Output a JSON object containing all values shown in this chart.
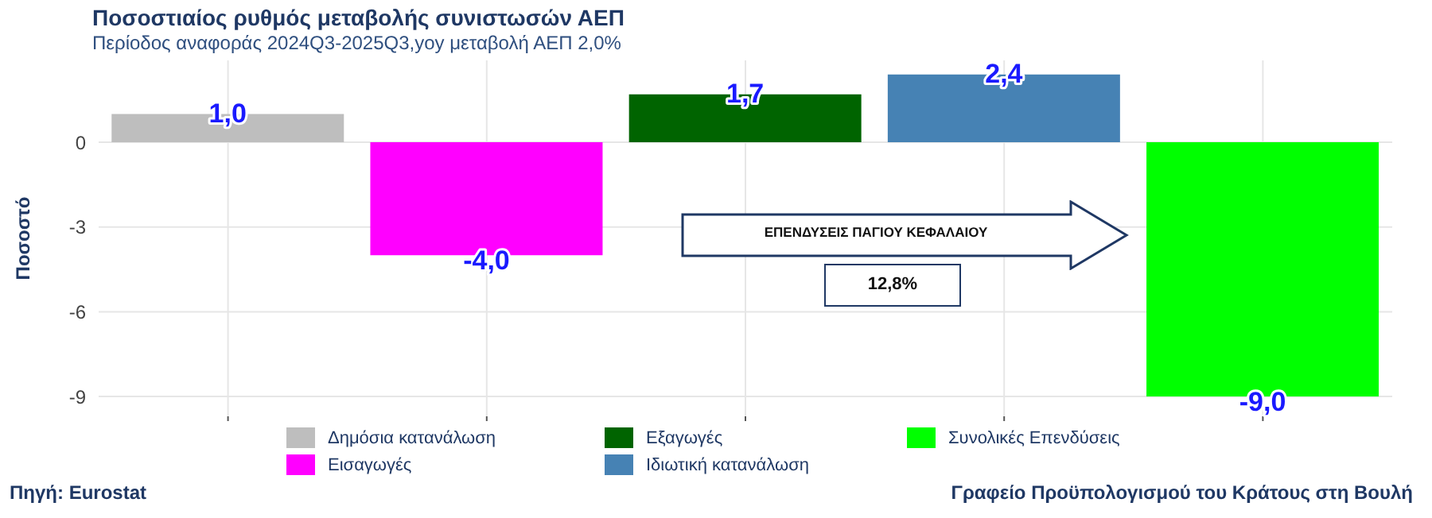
{
  "chart_data": {
    "type": "bar",
    "title": "Ποσοστιαίος ρυθμός μεταβολής συνιστωσών ΑΕΠ",
    "subtitle": "Περίοδος αναφοράς 2024Q3-2025Q3,yoy μεταβολή ΑΕΠ 2,0%",
    "ylabel": "Ποσοστό",
    "categories": [
      null,
      null,
      null,
      null,
      null
    ],
    "series": [
      {
        "name": "Δημόσια κατανάλωση",
        "color": "#bebebe",
        "values": [
          1.0,
          null,
          null,
          null,
          null
        ],
        "value_labels": [
          "1,0",
          null,
          null,
          null,
          null
        ]
      },
      {
        "name": "Εισαγωγές",
        "color": "#ff00ff",
        "values": [
          null,
          -4.0,
          null,
          null,
          null
        ],
        "value_labels": [
          null,
          "-4,0",
          null,
          null,
          null
        ]
      },
      {
        "name": "Εξαγωγές",
        "color": "#006400",
        "values": [
          null,
          null,
          1.7,
          null,
          null
        ],
        "value_labels": [
          null,
          null,
          "1,7",
          null,
          null
        ]
      },
      {
        "name": "Ιδιωτική κατανάλωση",
        "color": "#4682b4",
        "values": [
          null,
          null,
          null,
          2.4,
          null
        ],
        "value_labels": [
          null,
          null,
          null,
          "2,4",
          null
        ]
      },
      {
        "name": "Συνολικές Επενδύσεις",
        "color": "#00ff00",
        "values": [
          null,
          null,
          null,
          null,
          -9.0
        ],
        "value_labels": [
          null,
          null,
          null,
          null,
          "-9,0"
        ]
      }
    ],
    "ylim": [
      -9.7,
      2.9
    ],
    "yticks": [
      0,
      -3,
      -6,
      -9
    ],
    "grid": true,
    "legend": "bottom",
    "tick_labels": "y",
    "annotations": [
      "ΕΠΕΝΔΥΣΕΙΣ ΠΑΓΙΟΥ ΚΕΦΑΛΑΙΟΥ",
      "12,8%",
      "Πηγή: Eurostat",
      "Γραφείο Προϋπολογισμού του Κράτους στη Βουλή"
    ]
  }
}
